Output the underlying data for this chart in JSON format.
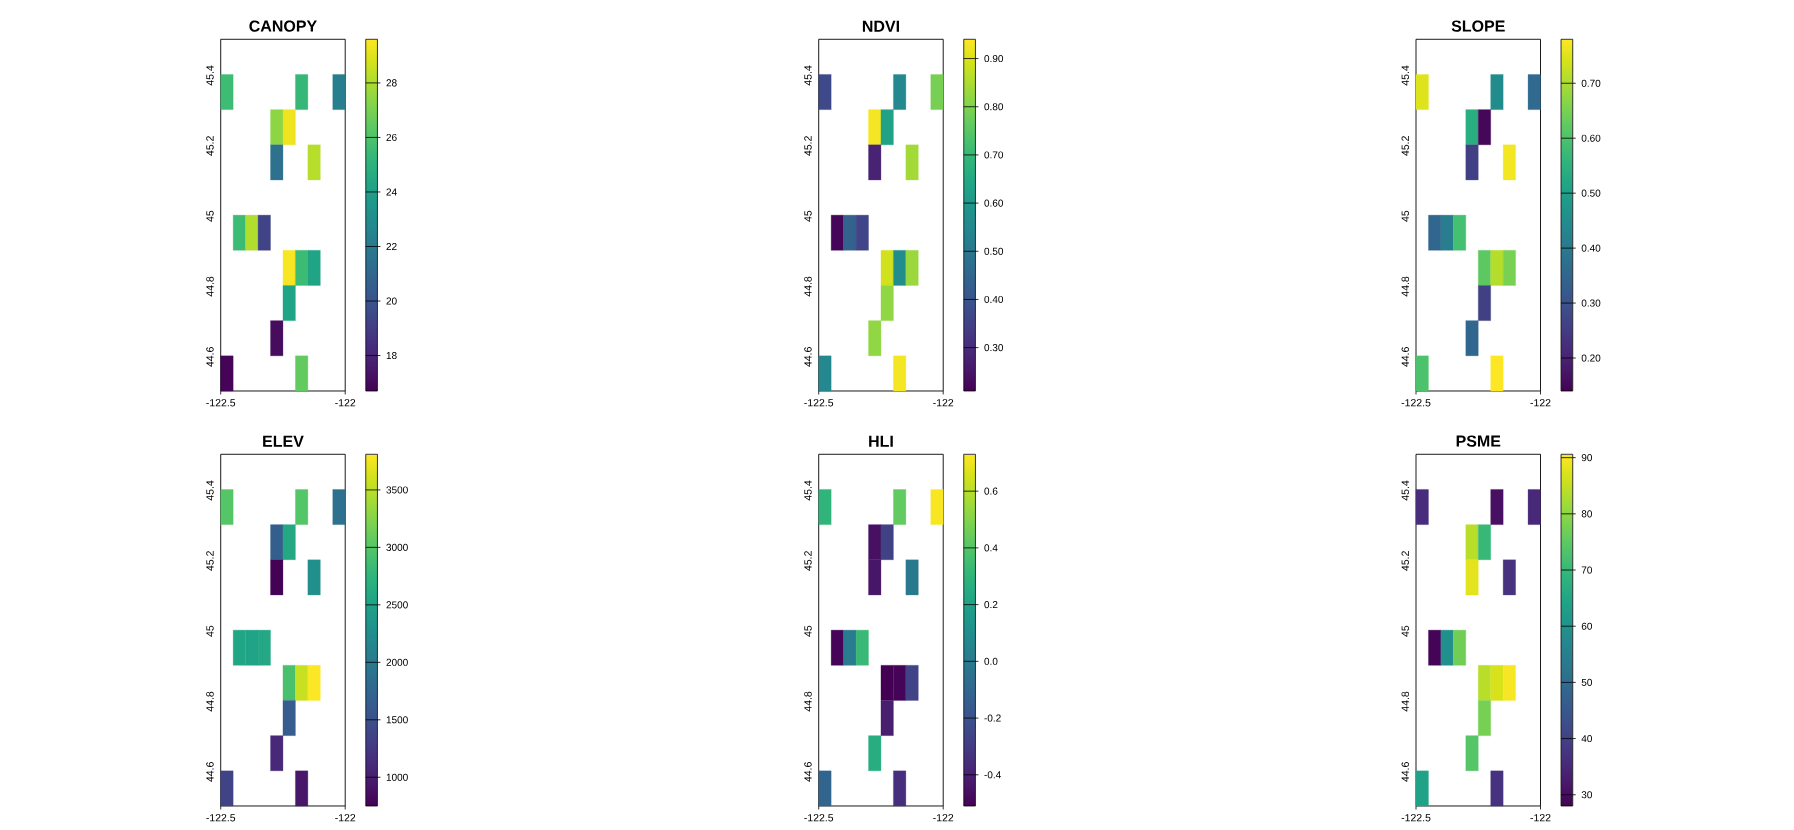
{
  "chart_data": [
    {
      "type": "scatter",
      "title": "CANOPY",
      "marker": "square",
      "xlim": [
        -122.5,
        -122
      ],
      "ylim": [
        44.5,
        45.5
      ],
      "xticks": [
        -122.5,
        -122
      ],
      "yticks": [
        44.6,
        44.8,
        45,
        45.2,
        45.4
      ],
      "clim": [
        16.7,
        29.6
      ],
      "cticks": [
        18,
        20,
        22,
        24,
        26,
        28
      ],
      "x": [
        -122.475,
        -122.175,
        -122.025,
        -122.275,
        -122.225,
        -122.275,
        -122.125,
        -122.425,
        -122.375,
        -122.325,
        -122.225,
        -122.175,
        -122.125,
        -122.225,
        -122.275,
        -122.475,
        -122.175
      ],
      "values": [
        45.35,
        45.35,
        45.35,
        45.25,
        45.25,
        45.15,
        45.15,
        44.95,
        44.95,
        44.95,
        44.85,
        44.85,
        44.85,
        44.75,
        44.65,
        44.55,
        44.55
      ],
      "cvalues": [
        25.6,
        25.3,
        22.2,
        27.4,
        29.3,
        21.5,
        28.2,
        25.5,
        28.1,
        19.3,
        29.5,
        25.5,
        24.2,
        24.2,
        17.1,
        16.8,
        26.5
      ]
    },
    {
      "type": "scatter",
      "title": "NDVI",
      "marker": "square",
      "xlim": [
        -122.5,
        -122
      ],
      "ylim": [
        44.5,
        45.5
      ],
      "xticks": [
        -122.5,
        -122
      ],
      "yticks": [
        44.6,
        44.8,
        45,
        45.2,
        45.4
      ],
      "clim": [
        0.21,
        0.94
      ],
      "cticks": [
        {
          "value": 0.3,
          "label": "0.30"
        },
        {
          "value": 0.4,
          "label": "0.40"
        },
        {
          "value": 0.5,
          "label": "0.50"
        },
        {
          "value": 0.6,
          "label": "0.60"
        },
        {
          "value": 0.7,
          "label": "0.70"
        },
        {
          "value": 0.8,
          "label": "0.80"
        },
        {
          "value": 0.9,
          "label": "0.90"
        }
      ],
      "x": [
        -122.475,
        -122.175,
        -122.025,
        -122.275,
        -122.225,
        -122.275,
        -122.125,
        -122.425,
        -122.375,
        -122.325,
        -122.225,
        -122.175,
        -122.125,
        -122.225,
        -122.275,
        -122.475,
        -122.175
      ],
      "values": [
        45.35,
        45.35,
        45.35,
        45.25,
        45.25,
        45.15,
        45.15,
        44.95,
        44.95,
        44.95,
        44.85,
        44.85,
        44.85,
        44.75,
        44.65,
        44.55,
        44.55
      ],
      "cvalues": [
        0.37,
        0.55,
        0.79,
        0.93,
        0.63,
        0.28,
        0.84,
        0.22,
        0.44,
        0.36,
        0.89,
        0.57,
        0.83,
        0.82,
        0.82,
        0.55,
        0.93
      ]
    },
    {
      "type": "scatter",
      "title": "SLOPE",
      "marker": "square",
      "xlim": [
        -122.5,
        -122
      ],
      "ylim": [
        44.5,
        45.5
      ],
      "xticks": [
        -122.5,
        -122
      ],
      "yticks": [
        44.6,
        44.8,
        45,
        45.2,
        45.4
      ],
      "clim": [
        0.14,
        0.78
      ],
      "cticks": [
        {
          "value": 0.2,
          "label": "0.20"
        },
        {
          "value": 0.3,
          "label": "0.30"
        },
        {
          "value": 0.4,
          "label": "0.40"
        },
        {
          "value": 0.5,
          "label": "0.50"
        },
        {
          "value": 0.6,
          "label": "0.60"
        },
        {
          "value": 0.7,
          "label": "0.70"
        }
      ],
      "x": [
        -122.475,
        -122.175,
        -122.025,
        -122.275,
        -122.225,
        -122.275,
        -122.125,
        -122.425,
        -122.375,
        -122.325,
        -122.225,
        -122.175,
        -122.125,
        -122.225,
        -122.275,
        -122.475,
        -122.175
      ],
      "values": [
        45.35,
        45.35,
        45.35,
        45.25,
        45.25,
        45.15,
        45.15,
        44.95,
        44.95,
        44.95,
        44.85,
        44.85,
        44.85,
        44.75,
        44.65,
        44.55,
        44.55
      ],
      "cvalues": [
        0.75,
        0.45,
        0.36,
        0.54,
        0.15,
        0.26,
        0.77,
        0.35,
        0.41,
        0.59,
        0.62,
        0.71,
        0.65,
        0.26,
        0.35,
        0.6,
        0.78
      ]
    },
    {
      "type": "scatter",
      "title": "ELEV",
      "marker": "square",
      "xlim": [
        -122.5,
        -122
      ],
      "ylim": [
        44.5,
        45.5
      ],
      "xticks": [
        -122.5,
        -122
      ],
      "yticks": [
        44.6,
        44.8,
        45,
        45.2,
        45.4
      ],
      "clim": [
        750,
        3810
      ],
      "cticks": [
        1000,
        1500,
        2000,
        2500,
        3000,
        3500
      ],
      "x": [
        -122.475,
        -122.175,
        -122.025,
        -122.275,
        -122.225,
        -122.275,
        -122.125,
        -122.425,
        -122.375,
        -122.325,
        -122.225,
        -122.175,
        -122.125,
        -122.225,
        -122.275,
        -122.475,
        -122.175
      ],
      "values": [
        45.35,
        45.35,
        45.35,
        45.25,
        45.25,
        45.15,
        45.15,
        44.95,
        44.95,
        44.95,
        44.85,
        44.85,
        44.85,
        44.75,
        44.65,
        44.55,
        44.55
      ],
      "cvalues": [
        3000,
        3000,
        1880,
        1670,
        2590,
        760,
        2280,
        2560,
        2520,
        2580,
        2920,
        3560,
        3800,
        1640,
        1090,
        1360,
        930
      ]
    },
    {
      "type": "scatter",
      "title": "HLI",
      "marker": "square",
      "xlim": [
        -122.5,
        -122
      ],
      "ylim": [
        44.5,
        45.5
      ],
      "xticks": [
        -122.5,
        -122
      ],
      "yticks": [
        44.6,
        44.8,
        45,
        45.2,
        45.4
      ],
      "clim": [
        -0.51,
        0.73
      ],
      "cticks": [
        -0.4,
        -0.2,
        {
          "value": 0,
          "label": "0.0"
        },
        0.2,
        0.4,
        0.6
      ],
      "x": [
        -122.475,
        -122.175,
        -122.025,
        -122.275,
        -122.225,
        -122.275,
        -122.125,
        -122.425,
        -122.375,
        -122.325,
        -122.225,
        -122.175,
        -122.125,
        -122.225,
        -122.275,
        -122.475,
        -122.175
      ],
      "values": [
        45.35,
        45.35,
        45.35,
        45.25,
        45.25,
        45.15,
        45.15,
        44.95,
        44.95,
        44.95,
        44.85,
        44.85,
        44.85,
        44.75,
        44.65,
        44.55,
        44.55
      ],
      "cvalues": [
        0.3,
        0.43,
        0.72,
        -0.46,
        -0.27,
        -0.44,
        -0.01,
        -0.5,
        0.0,
        0.33,
        -0.51,
        -0.5,
        -0.26,
        -0.41,
        0.26,
        -0.11,
        -0.35
      ]
    },
    {
      "type": "scatter",
      "title": "PSME",
      "marker": "square",
      "xlim": [
        -122.5,
        -122
      ],
      "ylim": [
        44.5,
        45.5
      ],
      "xticks": [
        -122.5,
        -122
      ],
      "yticks": [
        44.6,
        44.8,
        45,
        45.2,
        45.4
      ],
      "clim": [
        28.0,
        90.6
      ],
      "cticks": [
        30,
        40,
        50,
        60,
        70,
        80,
        90
      ],
      "x": [
        -122.475,
        -122.175,
        -122.025,
        -122.275,
        -122.225,
        -122.275,
        -122.125,
        -122.425,
        -122.375,
        -122.325,
        -122.225,
        -122.175,
        -122.125,
        -122.225,
        -122.275,
        -122.475,
        -122.175
      ],
      "values": [
        45.35,
        45.35,
        45.35,
        45.25,
        45.25,
        45.15,
        45.15,
        44.95,
        44.95,
        44.95,
        44.85,
        44.85,
        44.85,
        44.75,
        44.65,
        44.55,
        44.55
      ],
      "cvalues": [
        36,
        30.5,
        35,
        84,
        70,
        88,
        37,
        28.5,
        59,
        77,
        84,
        87,
        90,
        77.5,
        74,
        64,
        37
      ]
    }
  ]
}
